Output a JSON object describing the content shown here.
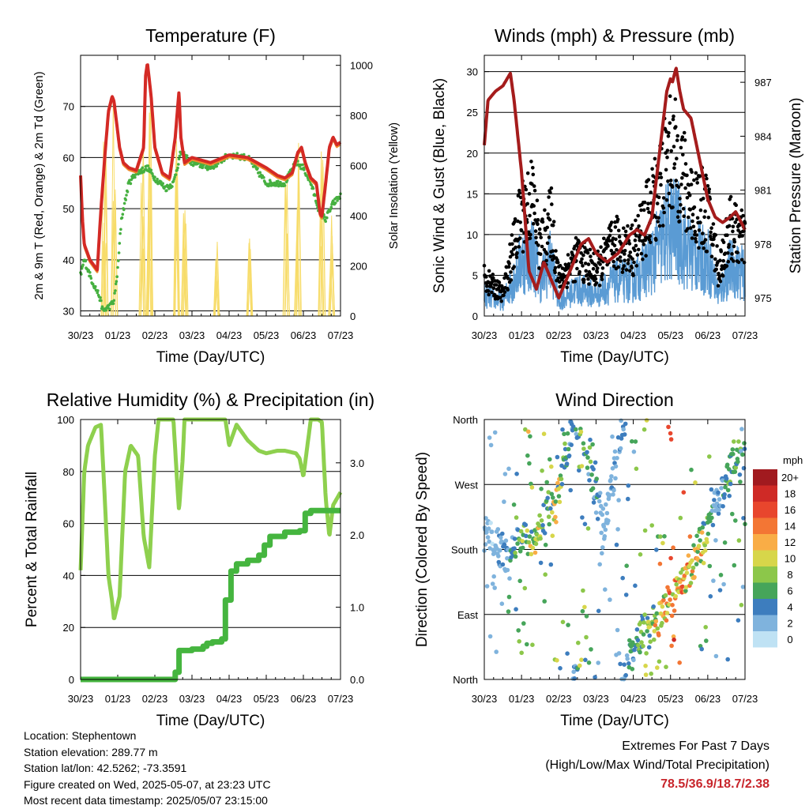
{
  "colors": {
    "temp2m": "#d42a25",
    "temp9m": "#f08a2b",
    "dewpoint": "#46b040",
    "solar": "#f7dc6a",
    "gust": "#000000",
    "wind": "#5a9bd4",
    "pressure": "#a51c1c",
    "rh": "#8ed04e",
    "precip": "#45b53f",
    "extremes": "#c8252b"
  },
  "x_ticks": [
    "30/23",
    "01/23",
    "02/23",
    "03/23",
    "04/23",
    "05/23",
    "06/23",
    "07/23"
  ],
  "panels": {
    "temperature": {
      "title": "Temperature (F)",
      "xlabel": "Time (Day/UTC)",
      "ylabel_left": "2m & 9m T (Red, Orange) & 2m Td (Green)",
      "ylabel_right": "Solar Insolation (Yellow)",
      "left_ticks": [
        "30",
        "40",
        "50",
        "60",
        "70"
      ],
      "right_ticks": [
        "0",
        "200",
        "400",
        "600",
        "800",
        "1000"
      ]
    },
    "winds": {
      "title": "Winds (mph) & Pressure (mb)",
      "xlabel": "Time (Day/UTC)",
      "ylabel_left": "Sonic Wind & Gust (Blue, Black)",
      "ylabel_right": "Station Pressure (Maroon)",
      "left_ticks": [
        "0",
        "5",
        "10",
        "15",
        "20",
        "25",
        "30"
      ],
      "right_ticks": [
        "975",
        "978",
        "981",
        "984",
        "987"
      ]
    },
    "humidity": {
      "title": "Relative Humidity (%) & Precipitation (in)",
      "xlabel": "Time (Day/UTC)",
      "ylabel_left": "Percent & Total Rainfall",
      "left_ticks": [
        "0",
        "20",
        "40",
        "60",
        "80",
        "100"
      ],
      "right_ticks": [
        "0.0",
        "1.0",
        "2.0",
        "3.0"
      ]
    },
    "direction": {
      "title": "Wind Direction",
      "xlabel": "Time (Day/UTC)",
      "ylabel_left": "Direction (Colored By Speed)",
      "left_ticks": [
        "North",
        "East",
        "South",
        "West",
        "North"
      ],
      "legend_title": "mph",
      "legend_labels": [
        "20+",
        "18",
        "16",
        "14",
        "12",
        "10",
        "8",
        "6",
        "4",
        "2",
        "0"
      ],
      "legend_colors": [
        "#a11a1f",
        "#cf2a26",
        "#e8462d",
        "#f37634",
        "#f9ad46",
        "#d7d64a",
        "#8cc74a",
        "#46a55a",
        "#3d7dbe",
        "#7fb3dd",
        "#bfe2f4"
      ]
    }
  },
  "footer": {
    "location": "Location: Stephentown",
    "elevation": "Station elevation: 289.77 m",
    "latlon": "Station lat/lon: 42.5262; -73.3591",
    "created": "Figure created on Wed, 2025-05-07, at 23:23 UTC",
    "latest": "Most recent data timestamp: 2025/05/07 23:15:00"
  },
  "extremes": {
    "line1": "Extremes For Past 7 Days",
    "line2": "(High/Low/Max Wind/Total Precipitation)",
    "values": "78.5/36.9/18.7/2.38"
  },
  "chart_data": [
    {
      "type": "line",
      "title": "Temperature (F)",
      "xlabel": "Time (Day/UTC)",
      "xlim": [
        0,
        7
      ],
      "ylim": [
        29,
        80
      ],
      "y2lim": [
        0,
        1040
      ],
      "series": [
        {
          "name": "2m & 9m T (Red, Orange)",
          "axis": "left",
          "x": [
            0,
            0.05,
            0.1,
            0.25,
            0.45,
            0.55,
            0.65,
            0.75,
            0.85,
            0.9,
            0.95,
            1.05,
            1.15,
            1.3,
            1.5,
            1.7,
            1.75,
            1.8,
            1.9,
            2.0,
            2.2,
            2.4,
            2.55,
            2.65,
            2.7,
            2.8,
            3.0,
            3.5,
            4.0,
            4.5,
            5.0,
            5.3,
            5.5,
            5.7,
            5.85,
            5.95,
            6.05,
            6.2,
            6.35,
            6.45,
            6.5,
            6.6,
            6.7,
            6.8,
            6.9,
            7.0
          ],
          "y": [
            56.5,
            48,
            43,
            40,
            38,
            50,
            60,
            69,
            72,
            71,
            68,
            62,
            59,
            58,
            57.5,
            62,
            76,
            78.5,
            72,
            62,
            57,
            56,
            64,
            73,
            64,
            59,
            60,
            59,
            60.5,
            60,
            58,
            56.5,
            56,
            57,
            61,
            62,
            59,
            56,
            55,
            49,
            48.5,
            55,
            62,
            64,
            62.5,
            63
          ]
        },
        {
          "name": "2m Td (Green)",
          "axis": "left",
          "x": [
            0,
            0.1,
            0.3,
            0.5,
            0.6,
            0.8,
            0.9,
            1.0,
            1.1,
            1.3,
            1.5,
            1.8,
            2.0,
            2.3,
            2.5,
            2.7,
            3.0,
            3.5,
            4.0,
            4.5,
            5.0,
            5.5,
            5.8,
            6.0,
            6.2,
            6.45,
            6.6,
            6.8,
            7.0
          ],
          "y": [
            37,
            40,
            36,
            33,
            30,
            31,
            32,
            38,
            48,
            55,
            57,
            58,
            56,
            54,
            55,
            61,
            59,
            58,
            60.5,
            60,
            55,
            55,
            59,
            58,
            55,
            49,
            48,
            51,
            52.5
          ]
        },
        {
          "name": "Solar Insolation (Yellow)",
          "axis": "right",
          "peaks_x": [
            0.65,
            0.9,
            1.65,
            1.85,
            2.6,
            2.8,
            3.65,
            4.55,
            5.55,
            5.85,
            6.5,
            6.75
          ],
          "peaks_y": [
            780,
            1000,
            700,
            1000,
            850,
            650,
            300,
            380,
            820,
            700,
            760,
            420
          ]
        }
      ]
    },
    {
      "type": "line",
      "title": "Winds (mph) & Pressure (mb)",
      "xlabel": "Time (Day/UTC)",
      "xlim": [
        0,
        7
      ],
      "ylim": [
        0,
        32
      ],
      "y2lim": [
        974,
        988.5
      ],
      "series": [
        {
          "name": "Station Pressure (Maroon)",
          "axis": "right",
          "x": [
            0,
            0.1,
            0.3,
            0.5,
            0.7,
            0.8,
            1.0,
            1.2,
            1.4,
            1.6,
            1.8,
            2.0,
            2.2,
            2.4,
            2.6,
            2.8,
            3.0,
            3.3,
            3.6,
            3.9,
            4.1,
            4.3,
            4.5,
            4.7,
            4.9,
            5.0,
            5.05,
            5.15,
            5.25,
            5.35,
            5.55,
            5.75,
            6.0,
            6.2,
            6.4,
            6.6,
            6.75,
            7.0
          ],
          "y": [
            983.5,
            986,
            986.5,
            986.8,
            987.5,
            986,
            982,
            976.5,
            975.5,
            977,
            976,
            975,
            976,
            977,
            978,
            978.3,
            977.5,
            977,
            977.5,
            978.5,
            978.8,
            978.5,
            979.5,
            983,
            986.5,
            987.2,
            987,
            987.8,
            986.5,
            985.5,
            985,
            983,
            980.5,
            979.5,
            979.2,
            979.5,
            979.8,
            978.8
          ]
        },
        {
          "name": "Sonic Wind & Gust (Blue, Black)",
          "axis": "left",
          "x": [
            0,
            0.5,
            1.0,
            1.3,
            1.5,
            1.8,
            2.0,
            2.5,
            3.0,
            3.5,
            4.0,
            4.5,
            5.0,
            5.2,
            5.5,
            6.0,
            6.3,
            6.6,
            7.0
          ],
          "wind": [
            3,
            2,
            8,
            9,
            5,
            8,
            2,
            4,
            3,
            5,
            5,
            8,
            13,
            12,
            9,
            8,
            3,
            7,
            6
          ],
          "gust": [
            5,
            3,
            14,
            16,
            9,
            13,
            5,
            8,
            6,
            10,
            9,
            15,
            22,
            21,
            16,
            14,
            6,
            12,
            10
          ]
        }
      ]
    },
    {
      "type": "line",
      "title": "Relative Humidity (%) & Precipitation (in)",
      "xlabel": "Time (Day/UTC)",
      "xlim": [
        0,
        7
      ],
      "ylim": [
        0,
        100
      ],
      "y2lim": [
        0,
        3.6
      ],
      "series": [
        {
          "name": "Relative Humidity",
          "axis": "left",
          "x": [
            0,
            0.1,
            0.2,
            0.4,
            0.55,
            0.65,
            0.75,
            0.85,
            0.9,
            1.05,
            1.2,
            1.35,
            1.55,
            1.7,
            1.85,
            2.0,
            2.1,
            2.3,
            2.5,
            2.6,
            2.65,
            2.75,
            2.8,
            3.0,
            3.4,
            3.9,
            4.0,
            4.2,
            4.5,
            4.8,
            5.0,
            5.3,
            5.5,
            5.8,
            5.9,
            6.0,
            6.2,
            6.4,
            6.5,
            6.6,
            6.7,
            6.8,
            7.0
          ],
          "y": [
            42,
            80,
            90,
            97,
            98,
            70,
            40,
            30,
            23,
            32,
            80,
            90,
            86,
            55,
            43,
            86,
            100,
            100,
            100,
            76,
            65,
            85,
            100,
            100,
            100,
            100,
            90,
            98,
            92,
            88,
            87,
            88,
            88,
            87,
            85,
            78,
            100,
            100,
            99,
            70,
            55,
            67,
            72
          ]
        },
        {
          "name": "Total Rainfall",
          "axis": "right",
          "x": [
            0,
            2.2,
            2.55,
            2.65,
            3.0,
            3.3,
            3.4,
            3.55,
            3.8,
            3.9,
            4.05,
            4.2,
            4.5,
            4.8,
            4.95,
            5.1,
            5.5,
            5.9,
            6.05,
            6.2,
            7.0
          ],
          "y": [
            0,
            0,
            0.1,
            0.4,
            0.42,
            0.46,
            0.5,
            0.52,
            0.56,
            1.1,
            1.5,
            1.6,
            1.65,
            1.72,
            1.86,
            1.98,
            2.04,
            2.06,
            2.3,
            2.34,
            2.34
          ]
        }
      ]
    },
    {
      "type": "scatter",
      "title": "Wind Direction",
      "xlabel": "Time (Day/UTC)",
      "ylabel": "Direction (Colored By Speed)",
      "xlim": [
        0,
        7
      ],
      "y_categories": [
        "North",
        "East",
        "South",
        "West",
        "North"
      ],
      "color_label": "mph",
      "series": [
        {
          "name": "direction",
          "x": [
            0.2,
            0.5,
            1.1,
            1.3,
            1.7,
            1.9,
            2.4,
            2.6,
            3.2,
            3.8,
            4.3,
            4.7,
            5.0,
            5.3,
            5.6,
            5.9,
            6.2,
            6.5,
            6.8,
            7.0
          ],
          "direction_deg": [
            200,
            170,
            195,
            190,
            235,
            240,
            360,
            355,
            200,
            380,
            430,
            445,
            470,
            490,
            520,
            560,
            600,
            640,
            680,
            700
          ],
          "speed": [
            2,
            3,
            8,
            10,
            7,
            11,
            3,
            9,
            2,
            4,
            8,
            11,
            14,
            13,
            12,
            10,
            3,
            6,
            7,
            5
          ]
        }
      ]
    }
  ]
}
